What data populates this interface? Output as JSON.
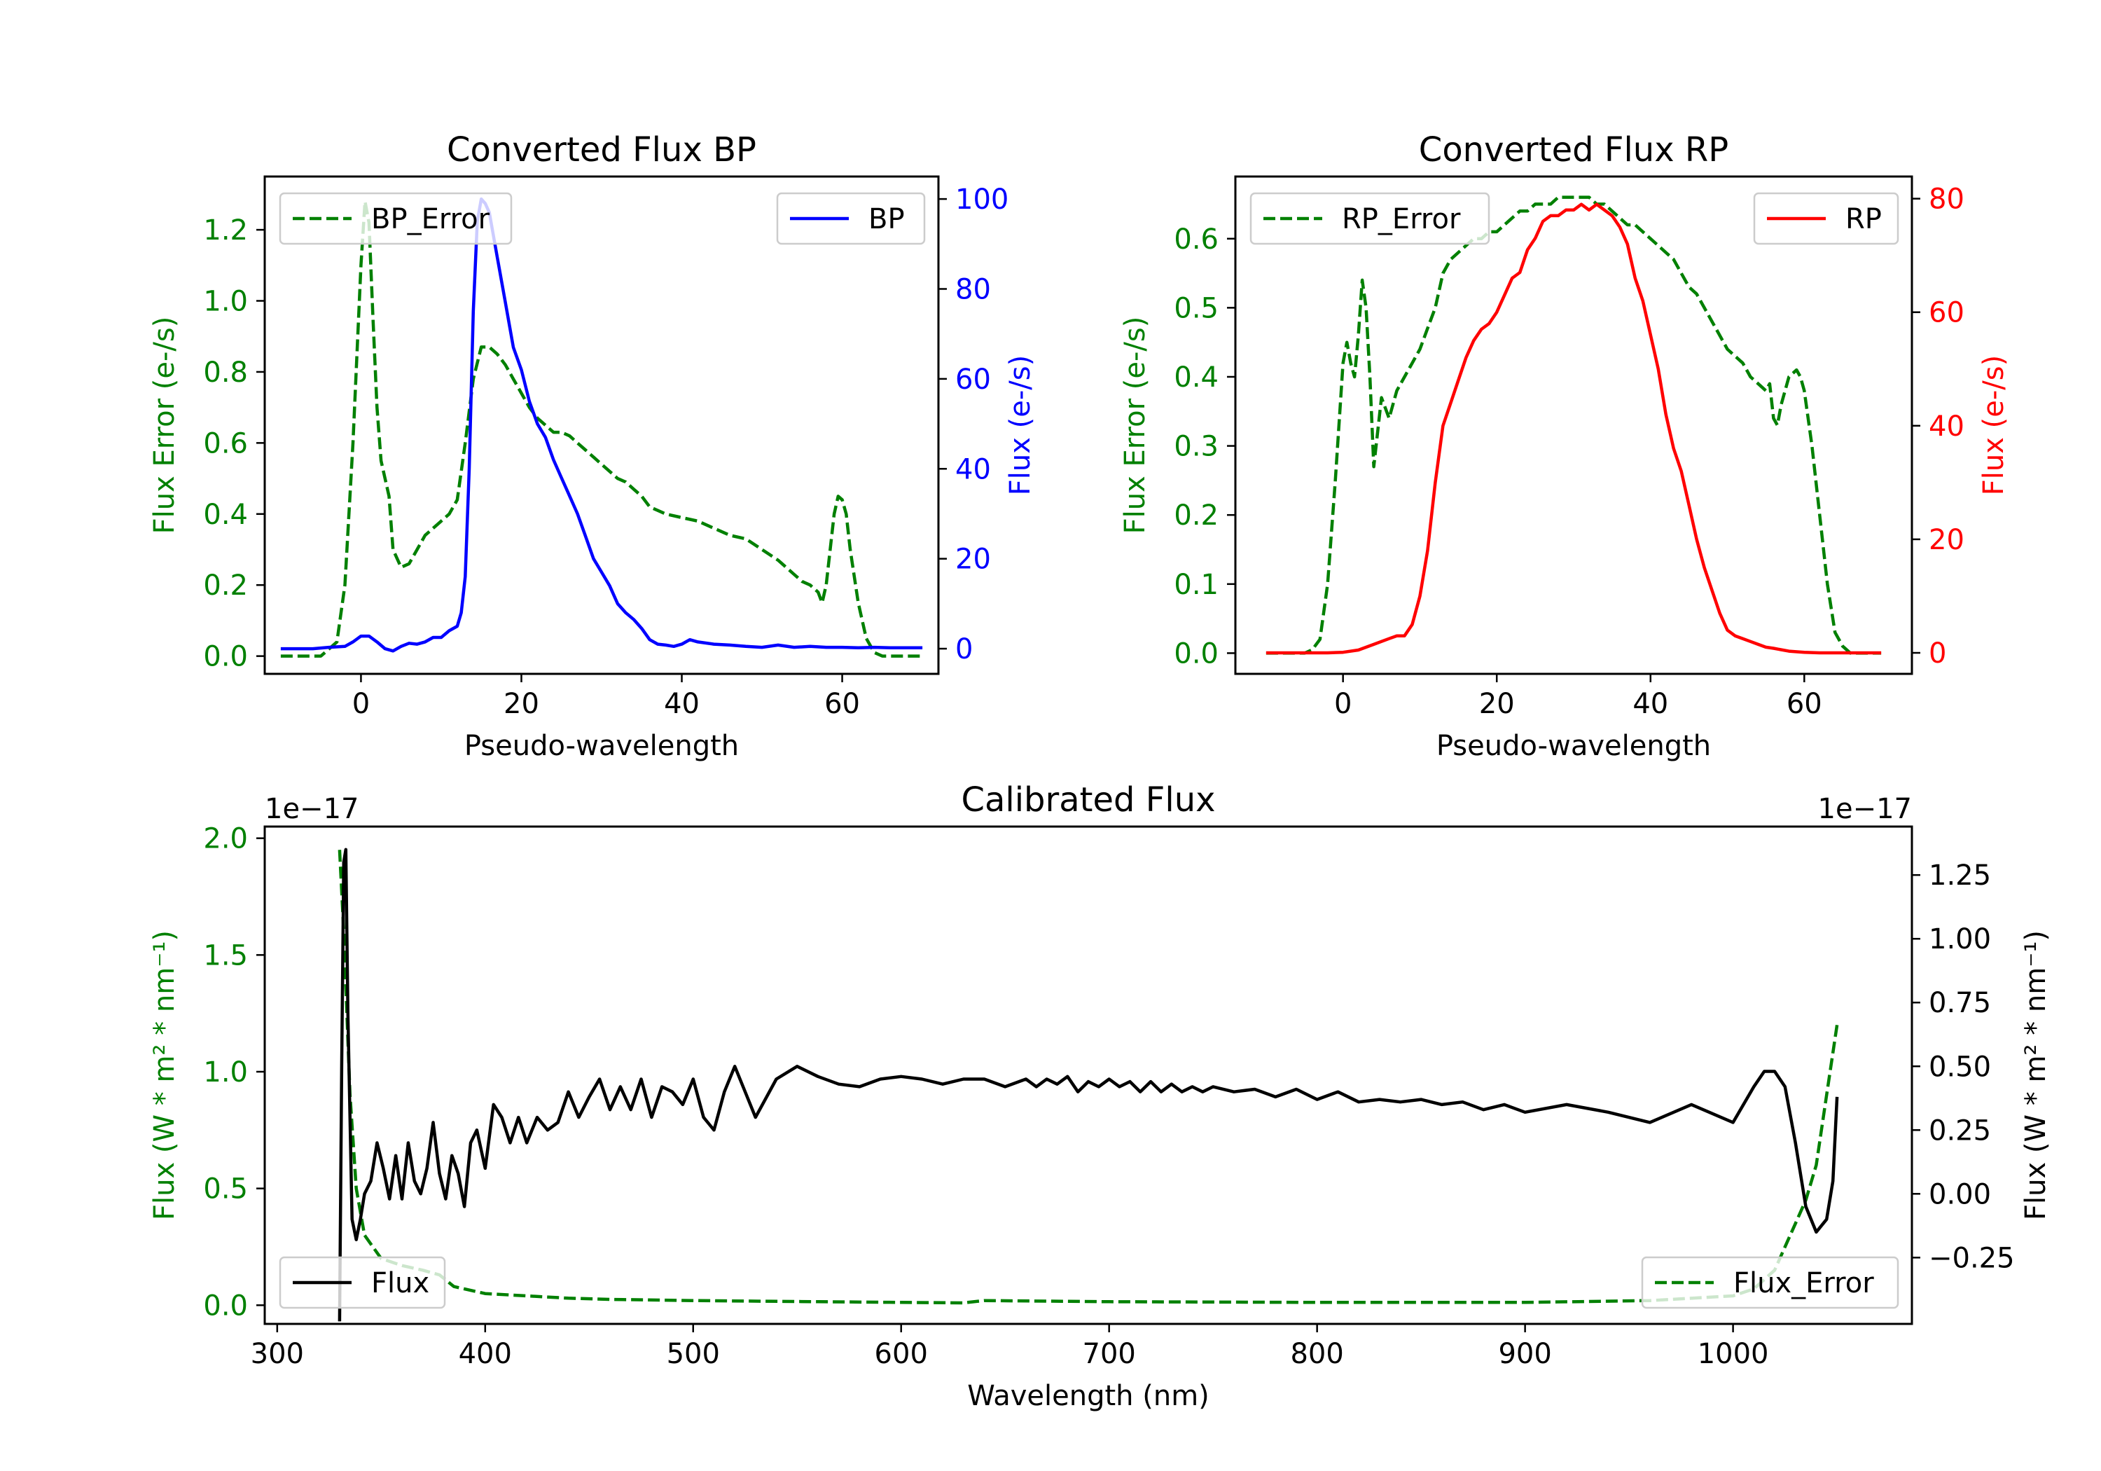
{
  "colors": {
    "green": "#008000",
    "blue": "#0000ff",
    "red": "#ff0000",
    "black": "#000000",
    "axis": "#000000",
    "legend_edge": "#cccccc"
  },
  "chart_data": [
    {
      "id": "bp",
      "type": "line",
      "title": "Converted Flux BP",
      "xlabel": "Pseudo-wavelength",
      "ylabel_left": "Flux Error (e-/s)",
      "ylabel_right": "Flux (e-/s)",
      "xlim": [
        -12,
        72
      ],
      "ylim_left": [
        -0.05,
        1.35
      ],
      "ylim_right": [
        -5.6,
        105
      ],
      "xticks": [
        0,
        20,
        40,
        60
      ],
      "yticks_left": [
        "0.0",
        "0.2",
        "0.4",
        "0.6",
        "0.8",
        "1.0",
        "1.2"
      ],
      "yticks_right": [
        "0",
        "20",
        "40",
        "60",
        "80",
        "100"
      ],
      "legend_left": {
        "label": "BP_Error",
        "loc": "upper left"
      },
      "legend_right": {
        "label": "BP",
        "loc": "upper right"
      },
      "series": [
        {
          "name": "BP_Error",
          "axis": "left",
          "style": "dashed",
          "color": "green",
          "x": [
            -10,
            -5,
            -3,
            -2,
            -1,
            0,
            0.5,
            1,
            1.5,
            2,
            2.5,
            3,
            3.5,
            4,
            5,
            6,
            7,
            8,
            9,
            10,
            11,
            12,
            13,
            14,
            15,
            16,
            17,
            18,
            19,
            20,
            21,
            22,
            23,
            24,
            25,
            26,
            27,
            28,
            29,
            30,
            31,
            32,
            33,
            34,
            35,
            36,
            37,
            38,
            40,
            42,
            44,
            46,
            48,
            50,
            52,
            54,
            55,
            56,
            57,
            57.5,
            58,
            58.5,
            59,
            59.5,
            60,
            60.5,
            61,
            62,
            63,
            64,
            65,
            66,
            68,
            70
          ],
          "values": [
            0.0,
            0.0,
            0.04,
            0.2,
            0.6,
            1.1,
            1.28,
            1.22,
            0.95,
            0.7,
            0.55,
            0.5,
            0.45,
            0.3,
            0.25,
            0.26,
            0.3,
            0.34,
            0.36,
            0.38,
            0.4,
            0.44,
            0.6,
            0.78,
            0.87,
            0.87,
            0.85,
            0.82,
            0.78,
            0.74,
            0.7,
            0.67,
            0.65,
            0.63,
            0.63,
            0.62,
            0.6,
            0.58,
            0.56,
            0.54,
            0.52,
            0.5,
            0.49,
            0.47,
            0.45,
            0.42,
            0.41,
            0.4,
            0.39,
            0.38,
            0.36,
            0.34,
            0.33,
            0.3,
            0.27,
            0.23,
            0.21,
            0.2,
            0.18,
            0.15,
            0.2,
            0.3,
            0.4,
            0.45,
            0.44,
            0.4,
            0.3,
            0.15,
            0.05,
            0.01,
            0.0,
            0.0,
            0.0,
            0.0
          ]
        },
        {
          "name": "BP",
          "axis": "right",
          "style": "solid",
          "color": "blue",
          "x": [
            -10,
            -6,
            -4,
            -2,
            -1,
            0,
            1,
            2,
            3,
            4,
            5,
            6,
            7,
            8,
            9,
            10,
            11,
            12,
            12.5,
            13,
            13.5,
            14,
            14.5,
            15,
            15.5,
            16,
            16.5,
            17,
            18,
            19,
            20,
            21,
            22,
            23,
            24,
            25,
            26,
            27,
            28,
            29,
            30,
            31,
            32,
            33,
            34,
            35,
            36,
            37,
            38,
            39,
            40,
            41,
            42,
            44,
            46,
            48,
            50,
            52,
            54,
            56,
            58,
            60,
            62,
            64,
            66,
            68,
            70
          ],
          "values": [
            0,
            0,
            0.3,
            0.5,
            1.5,
            2.8,
            2.8,
            1.5,
            0,
            -0.5,
            0.5,
            1.2,
            1.0,
            1.5,
            2.5,
            2.5,
            4.0,
            5.0,
            8.0,
            16.0,
            40.0,
            75.0,
            95.0,
            100.0,
            99.0,
            97.0,
            92.0,
            87.0,
            77.0,
            67.0,
            62.0,
            55.0,
            50.0,
            47.0,
            42.0,
            38.0,
            34.0,
            30.0,
            25.0,
            20.0,
            17.0,
            14.0,
            10.0,
            8.0,
            6.5,
            4.5,
            2.0,
            1.0,
            0.8,
            0.5,
            1.0,
            2.0,
            1.5,
            1.0,
            0.8,
            0.5,
            0.3,
            0.8,
            0.3,
            0.5,
            0.3,
            0.3,
            0.2,
            0.3,
            0.2,
            0.2,
            0.2
          ]
        }
      ]
    },
    {
      "id": "rp",
      "type": "line",
      "title": "Converted Flux RP",
      "xlabel": "Pseudo-wavelength",
      "ylabel_left": "Flux Error (e-/s)",
      "ylabel_right": "Flux (e-/s)",
      "xlim": [
        -14,
        74
      ],
      "ylim_left": [
        -0.03,
        0.69
      ],
      "ylim_right": [
        -3.7,
        83.9
      ],
      "xticks": [
        0,
        20,
        40,
        60
      ],
      "yticks_left": [
        "0.0",
        "0.1",
        "0.2",
        "0.3",
        "0.4",
        "0.5",
        "0.6"
      ],
      "yticks_right": [
        "0",
        "20",
        "40",
        "60",
        "80"
      ],
      "legend_left": {
        "label": "RP_Error",
        "loc": "upper left"
      },
      "legend_right": {
        "label": "RP",
        "loc": "upper right"
      },
      "series": [
        {
          "name": "RP_Error",
          "axis": "left",
          "style": "dashed",
          "color": "green",
          "x": [
            -10,
            -5,
            -4,
            -3,
            -2,
            -1,
            0,
            0.5,
            1,
            1.5,
            2,
            2.5,
            3,
            3.5,
            4,
            4.5,
            5,
            6,
            7,
            8,
            9,
            10,
            11,
            12,
            13,
            14,
            15,
            16,
            17,
            18,
            19,
            20,
            21,
            22,
            23,
            24,
            25,
            26,
            27,
            28,
            29,
            30,
            31,
            32,
            33,
            34,
            35,
            36,
            37,
            38,
            39,
            40,
            41,
            42,
            43,
            44,
            45,
            46,
            47,
            48,
            49,
            50,
            51,
            52,
            53,
            54,
            55,
            55.5,
            56,
            56.5,
            57,
            58,
            59,
            59.5,
            60,
            61,
            62,
            63,
            64,
            65,
            66,
            68,
            70
          ],
          "values": [
            0.0,
            0.0,
            0.005,
            0.02,
            0.1,
            0.25,
            0.42,
            0.45,
            0.42,
            0.4,
            0.46,
            0.54,
            0.5,
            0.4,
            0.27,
            0.32,
            0.37,
            0.34,
            0.38,
            0.4,
            0.42,
            0.44,
            0.47,
            0.5,
            0.55,
            0.57,
            0.58,
            0.59,
            0.6,
            0.6,
            0.61,
            0.61,
            0.62,
            0.63,
            0.64,
            0.64,
            0.65,
            0.65,
            0.65,
            0.66,
            0.66,
            0.66,
            0.66,
            0.66,
            0.65,
            0.65,
            0.64,
            0.63,
            0.62,
            0.62,
            0.61,
            0.6,
            0.59,
            0.58,
            0.57,
            0.55,
            0.53,
            0.52,
            0.5,
            0.48,
            0.46,
            0.44,
            0.43,
            0.42,
            0.4,
            0.39,
            0.38,
            0.39,
            0.34,
            0.33,
            0.36,
            0.4,
            0.41,
            0.4,
            0.38,
            0.3,
            0.2,
            0.1,
            0.03,
            0.01,
            0.0,
            0.0,
            0.0
          ]
        },
        {
          "name": "RP",
          "axis": "right",
          "style": "solid",
          "color": "red",
          "x": [
            -10,
            -5,
            -2,
            0,
            2,
            4,
            6,
            7,
            8,
            9,
            10,
            11,
            12,
            13,
            14,
            15,
            16,
            17,
            18,
            19,
            20,
            21,
            22,
            23,
            24,
            25,
            26,
            27,
            28,
            29,
            30,
            31,
            32,
            33,
            34,
            35,
            36,
            37,
            38,
            39,
            40,
            41,
            42,
            43,
            44,
            45,
            46,
            47,
            48,
            49,
            50,
            51,
            52,
            53,
            54,
            55,
            56,
            58,
            60,
            62,
            64,
            66,
            68,
            70
          ],
          "values": [
            0,
            0,
            0,
            0.1,
            0.5,
            1.5,
            2.5,
            3.0,
            3.0,
            5.0,
            10.0,
            18.0,
            30.0,
            40.0,
            44.0,
            48.0,
            52.0,
            55.0,
            57.0,
            58.0,
            60.0,
            63.0,
            66.0,
            67.0,
            71.0,
            73.0,
            76.0,
            77.0,
            77.0,
            78.0,
            78.0,
            79.0,
            78.0,
            79.0,
            78.0,
            77.0,
            75.0,
            72.0,
            66.0,
            62.0,
            56.0,
            50.0,
            42.0,
            36.0,
            32.0,
            26.0,
            20.0,
            15.0,
            11.0,
            7.0,
            4.0,
            3.0,
            2.5,
            2.0,
            1.5,
            1.0,
            0.8,
            0.3,
            0.1,
            0,
            0,
            0,
            0,
            0
          ]
        }
      ]
    },
    {
      "id": "cal",
      "type": "line",
      "title": "Calibrated Flux",
      "xlabel": "Wavelength (nm)",
      "ylabel_left": "Flux (W * m² * nm⁻¹)",
      "ylabel_right": "Flux (W * m² * nm⁻¹)",
      "offset_left": "1e−17",
      "offset_right": "1e−17",
      "xlim": [
        294,
        1086
      ],
      "ylim_left": [
        -0.08,
        2.05
      ],
      "ylim_right": [
        -0.51,
        1.44
      ],
      "xticks": [
        300,
        400,
        500,
        600,
        700,
        800,
        900,
        1000
      ],
      "yticks_left": [
        "0.0",
        "0.5",
        "1.0",
        "1.5",
        "2.0"
      ],
      "yticks_right": [
        "−0.25",
        "0.00",
        "0.25",
        "0.50",
        "0.75",
        "1.00",
        "1.25"
      ],
      "legend_left": {
        "label": "Flux_Error",
        "loc": "lower right"
      },
      "legend_right": {
        "label": "Flux",
        "loc": "lower left"
      },
      "series": [
        {
          "name": "Flux_Error",
          "axis": "left",
          "style": "dashed",
          "color": "green",
          "x": [
            330,
            332,
            335,
            338,
            342,
            350,
            360,
            370,
            378,
            385,
            400,
            420,
            440,
            460,
            500,
            560,
            600,
            630,
            640,
            700,
            800,
            900,
            960,
            1000,
            1010,
            1020,
            1025,
            1030,
            1035,
            1040,
            1045,
            1050
          ],
          "values": [
            1.95,
            1.6,
            0.9,
            0.5,
            0.3,
            0.2,
            0.17,
            0.15,
            0.13,
            0.08,
            0.05,
            0.04,
            0.03,
            0.025,
            0.02,
            0.015,
            0.012,
            0.01,
            0.02,
            0.015,
            0.012,
            0.012,
            0.02,
            0.04,
            0.07,
            0.15,
            0.25,
            0.35,
            0.45,
            0.6,
            0.9,
            1.2
          ]
        },
        {
          "name": "Flux",
          "axis": "right",
          "style": "solid",
          "color": "black",
          "x": [
            330,
            331,
            332,
            333,
            334,
            336,
            338,
            340,
            342,
            345,
            348,
            351,
            354,
            357,
            360,
            363,
            366,
            369,
            372,
            375,
            378,
            381,
            384,
            387,
            390,
            393,
            396,
            400,
            404,
            408,
            412,
            416,
            420,
            425,
            430,
            435,
            440,
            445,
            450,
            455,
            460,
            465,
            470,
            475,
            480,
            485,
            490,
            495,
            500,
            505,
            510,
            515,
            520,
            525,
            530,
            540,
            550,
            560,
            570,
            580,
            590,
            600,
            610,
            620,
            630,
            640,
            650,
            660,
            665,
            670,
            675,
            680,
            685,
            690,
            695,
            700,
            705,
            710,
            715,
            720,
            725,
            730,
            735,
            740,
            745,
            750,
            760,
            770,
            780,
            790,
            800,
            810,
            820,
            830,
            840,
            850,
            860,
            870,
            880,
            890,
            900,
            920,
            940,
            960,
            980,
            1000,
            1010,
            1015,
            1020,
            1025,
            1030,
            1035,
            1040,
            1045,
            1048,
            1050
          ],
          "values": [
            -0.5,
            0.5,
            1.3,
            1.35,
            0.7,
            -0.1,
            -0.18,
            -0.1,
            0.0,
            0.05,
            0.2,
            0.1,
            -0.02,
            0.15,
            -0.02,
            0.2,
            0.05,
            0.0,
            0.1,
            0.28,
            0.08,
            -0.02,
            0.15,
            0.08,
            -0.05,
            0.2,
            0.25,
            0.1,
            0.35,
            0.3,
            0.2,
            0.3,
            0.2,
            0.3,
            0.25,
            0.28,
            0.4,
            0.3,
            0.38,
            0.45,
            0.33,
            0.42,
            0.33,
            0.45,
            0.3,
            0.42,
            0.4,
            0.35,
            0.45,
            0.3,
            0.25,
            0.4,
            0.5,
            0.4,
            0.3,
            0.45,
            0.5,
            0.46,
            0.43,
            0.42,
            0.45,
            0.46,
            0.45,
            0.43,
            0.45,
            0.45,
            0.42,
            0.45,
            0.42,
            0.45,
            0.43,
            0.46,
            0.4,
            0.44,
            0.42,
            0.45,
            0.42,
            0.44,
            0.4,
            0.44,
            0.4,
            0.43,
            0.4,
            0.42,
            0.4,
            0.42,
            0.4,
            0.41,
            0.38,
            0.41,
            0.37,
            0.4,
            0.36,
            0.37,
            0.36,
            0.37,
            0.35,
            0.36,
            0.33,
            0.35,
            0.32,
            0.35,
            0.32,
            0.28,
            0.35,
            0.28,
            0.42,
            0.48,
            0.48,
            0.42,
            0.2,
            -0.05,
            -0.15,
            -0.1,
            0.05,
            0.38
          ]
        }
      ]
    }
  ]
}
